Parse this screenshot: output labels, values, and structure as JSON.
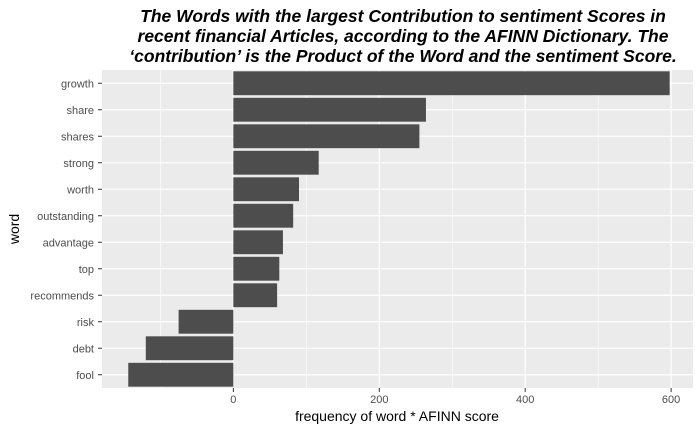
{
  "chart_data": {
    "type": "bar",
    "orientation": "horizontal",
    "title_lines": [
      "The Words with the largest Contribution to sentiment Scores in",
      "recent financial Articles, according to the AFINN Dictionary. The",
      "‘contribution’ is the Product of the Word and the sentiment Score."
    ],
    "xlabel": "frequency of word * AFINN score",
    "ylabel": "word",
    "categories": [
      "growth",
      "share",
      "shares",
      "strong",
      "worth",
      "outstanding",
      "advantage",
      "top",
      "recommends",
      "risk",
      "debt",
      "fool"
    ],
    "values": [
      598,
      264,
      255,
      117,
      90,
      82,
      68,
      63,
      60,
      -75,
      -120,
      -144
    ],
    "xlim": [
      -180,
      630
    ],
    "xticks": [
      0,
      200,
      400,
      600
    ],
    "grid": true,
    "legend": "none",
    "bar_color": "#4d4d4d",
    "panel_color": "#ebebeb"
  }
}
